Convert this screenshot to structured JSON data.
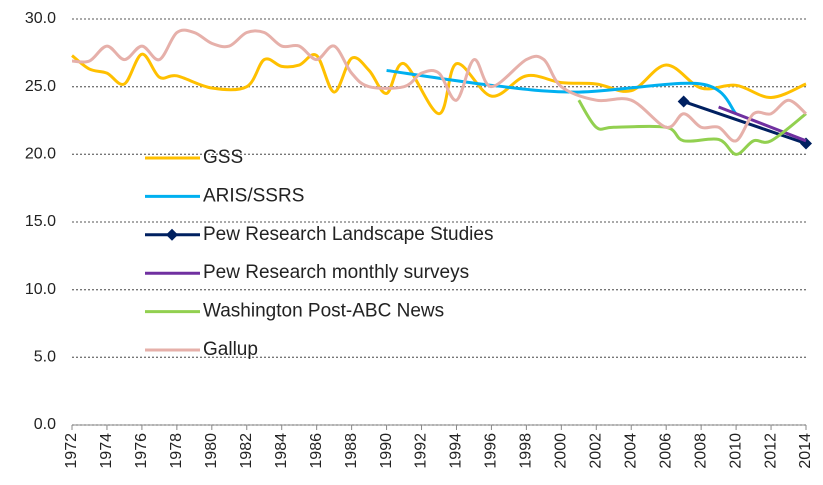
{
  "chart_data": {
    "type": "line",
    "xlim": [
      1972,
      2014
    ],
    "xticks": [
      1972,
      1974,
      1976,
      1978,
      1980,
      1982,
      1984,
      1986,
      1988,
      1990,
      1992,
      1994,
      1996,
      1998,
      2000,
      2002,
      2004,
      2006,
      2008,
      2010,
      2012,
      2014
    ],
    "ylim": [
      0,
      30
    ],
    "yticks": [
      {
        "value": 0,
        "label": "0.0"
      },
      {
        "value": 5,
        "label": "5.0"
      },
      {
        "value": 10,
        "label": "10.0"
      },
      {
        "value": 15,
        "label": "15.0"
      },
      {
        "value": 20,
        "label": "20.0"
      },
      {
        "value": 25,
        "label": "25.0"
      },
      {
        "value": 30,
        "label": "30.0"
      }
    ],
    "grid": true,
    "legend": "left",
    "series": [
      {
        "name": "GSS",
        "color": "#ffc000",
        "x": [
          1972,
          1973,
          1974,
          1975,
          1976,
          1977,
          1978,
          1980,
          1982,
          1983,
          1984,
          1985,
          1986,
          1987,
          1988,
          1989,
          1990,
          1991,
          1993,
          1994,
          1996,
          1998,
          2000,
          2002,
          2004,
          2006,
          2008,
          2010,
          2012,
          2014
        ],
        "values": [
          27.3,
          26.3,
          26.0,
          25.2,
          27.4,
          25.7,
          25.8,
          24.9,
          25.0,
          27.0,
          26.5,
          26.6,
          27.3,
          24.6,
          27.1,
          26.2,
          24.5,
          26.7,
          23.0,
          26.7,
          24.3,
          25.8,
          25.3,
          25.2,
          24.7,
          26.6,
          24.9,
          25.1,
          24.2,
          25.2
        ]
      },
      {
        "name": "ARIS/SSRS",
        "color": "#00b0f0",
        "x": [
          1990,
          1996,
          2001,
          2008,
          2010
        ],
        "values": [
          26.2,
          25.1,
          24.6,
          25.2,
          23.0
        ]
      },
      {
        "name": "Pew Research Landscape Studies",
        "color": "#002060",
        "marker": "diamond",
        "x": [
          2007,
          2014
        ],
        "values": [
          23.9,
          20.8
        ]
      },
      {
        "name": "Pew Research monthly surveys",
        "color": "#7030a0",
        "x": [
          2009,
          2014
        ],
        "values": [
          23.5,
          21.0
        ]
      },
      {
        "name": "Washington Post-ABC News",
        "color": "#92d050",
        "x": [
          2001,
          2002,
          2003,
          2006,
          2007,
          2009,
          2010,
          2011,
          2012,
          2014
        ],
        "values": [
          24.0,
          22.0,
          22.0,
          22.0,
          21.0,
          21.1,
          20.0,
          21.0,
          21.0,
          23.0
        ]
      },
      {
        "name": "Gallup",
        "color": "#e6b0aa",
        "x": [
          1972,
          1973,
          1974,
          1975,
          1976,
          1977,
          1978,
          1979,
          1980,
          1981,
          1982,
          1983,
          1984,
          1985,
          1986,
          1987,
          1988,
          1989,
          1991,
          1992,
          1993,
          1994,
          1995,
          1996,
          1998,
          1999,
          2000,
          2002,
          2004,
          2006,
          2007,
          2008,
          2009,
          2010,
          2011,
          2012,
          2013,
          2014
        ],
        "values": [
          26.9,
          26.9,
          28.0,
          27.0,
          28.0,
          27.0,
          29.0,
          29.0,
          28.2,
          28.0,
          29.0,
          29.0,
          28.0,
          28.0,
          27.0,
          28.0,
          26.0,
          25.0,
          25.0,
          26.0,
          26.0,
          24.0,
          27.0,
          25.0,
          27.0,
          27.0,
          25.0,
          24.0,
          24.0,
          22.0,
          23.0,
          22.0,
          22.0,
          21.0,
          23.0,
          23.0,
          24.0,
          23.0
        ]
      }
    ]
  }
}
